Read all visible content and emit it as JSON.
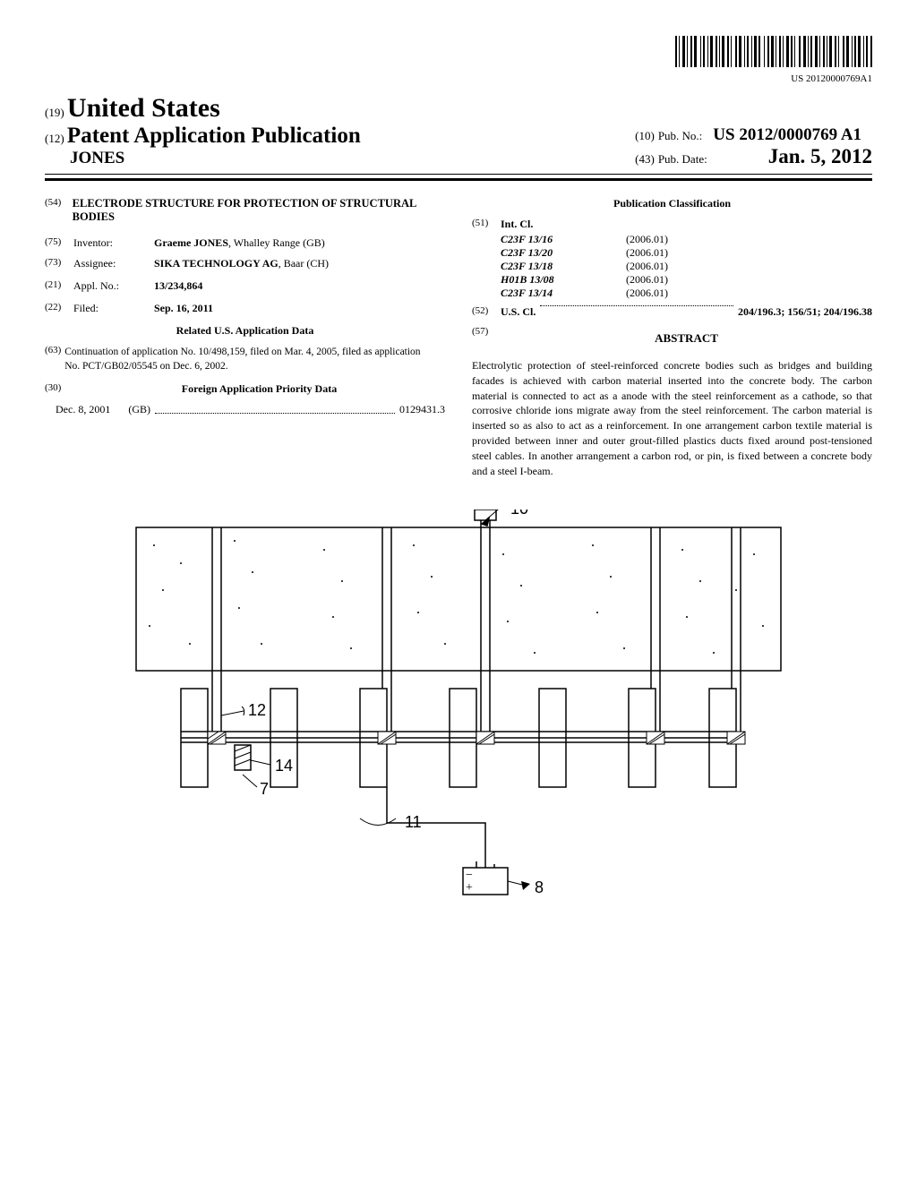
{
  "barcode_sub": "US 20120000769A1",
  "country_num": "(19)",
  "country": "United States",
  "pub_num": "(12)",
  "pub_title": "Patent Application Publication",
  "inventor_sur": "JONES",
  "pubno_num": "(10)",
  "pubno_label": "Pub. No.:",
  "pubno": "US 2012/0000769 A1",
  "pubdate_num": "(43)",
  "pubdate_label": "Pub. Date:",
  "pubdate": "Jan. 5, 2012",
  "title_num": "(54)",
  "title": "ELECTRODE STRUCTURE FOR PROTECTION OF STRUCTURAL BODIES",
  "inventor_num": "(75)",
  "inventor_label": "Inventor:",
  "inventor_val": "Graeme JONES",
  "inventor_loc": ", Whalley Range (GB)",
  "assignee_num": "(73)",
  "assignee_label": "Assignee:",
  "assignee_val": "SIKA TECHNOLOGY AG",
  "assignee_loc": ", Baar (CH)",
  "applno_num": "(21)",
  "applno_label": "Appl. No.:",
  "applno_val": "13/234,864",
  "filed_num": "(22)",
  "filed_label": "Filed:",
  "filed_val": "Sep. 16, 2011",
  "related_hdr": "Related U.S. Application Data",
  "cont_num": "(63)",
  "cont_text": "Continuation of application No. 10/498,159, filed on Mar. 4, 2005, filed as application No. PCT/GB02/05545 on Dec. 6, 2002.",
  "foreign_num": "(30)",
  "foreign_hdr": "Foreign Application Priority Data",
  "priority_date": "Dec. 8, 2001",
  "priority_country": "(GB)",
  "priority_num": "0129431.3",
  "class_hdr": "Publication Classification",
  "intcl_num": "(51)",
  "intcl_label": "Int. Cl.",
  "intcl": [
    {
      "code": "C23F 13/16",
      "year": "(2006.01)"
    },
    {
      "code": "C23F 13/20",
      "year": "(2006.01)"
    },
    {
      "code": "C23F 13/18",
      "year": "(2006.01)"
    },
    {
      "code": "H01B 13/08",
      "year": "(2006.01)"
    },
    {
      "code": "C23F 13/14",
      "year": "(2006.01)"
    }
  ],
  "uscl_num": "(52)",
  "uscl_label": "U.S. Cl.",
  "uscl_val": "204/196.3; 156/51; 204/196.38",
  "abstract_num": "(57)",
  "abstract_title": "ABSTRACT",
  "abstract_text": "Electrolytic protection of steel-reinforced concrete bodies such as bridges and building facades is achieved with carbon material inserted into the concrete body. The carbon material is connected to act as a anode with the steel reinforcement as a cathode, so that corrosive chloride ions migrate away from the steel reinforcement. The carbon material is inserted so as also to act as a reinforcement. In one arrangement carbon textile material is provided between inner and outer grout-filled plastics ducts fixed around post-tensioned steel cables. In another arrangement a carbon rod, or pin, is fixed between a concrete body and a steel I-beam.",
  "fig_labels": {
    "10": "10",
    "12": "12",
    "14": "14",
    "7": "7",
    "11": "11",
    "8": "8"
  }
}
